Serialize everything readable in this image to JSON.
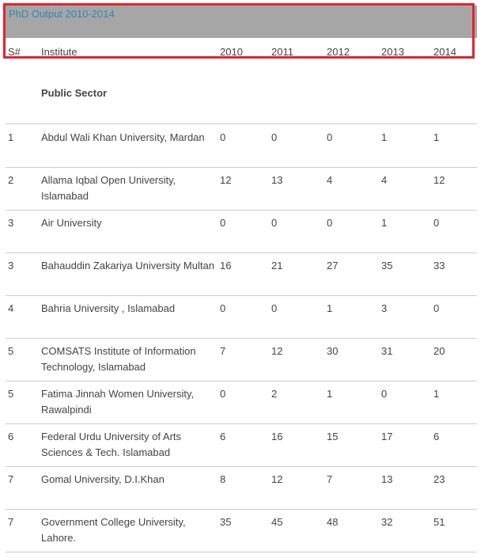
{
  "table": {
    "title": "PhD Output 2010-2014",
    "headers": {
      "num": "S#",
      "institute": "Institute",
      "years": [
        "2010",
        "2011",
        "2012",
        "2013",
        "2014"
      ]
    },
    "section": "Public Sector",
    "rows": [
      {
        "num": "1",
        "institute": "Abdul Wali Khan University, Mardan",
        "values": [
          "0",
          "0",
          "0",
          "1",
          "1"
        ]
      },
      {
        "num": "2",
        "institute": "Allama Iqbal Open University, Islamabad",
        "values": [
          "12",
          "13",
          "4",
          "4",
          "12"
        ]
      },
      {
        "num": "3",
        "institute": "Air University",
        "values": [
          "0",
          "0",
          "0",
          "1",
          "0"
        ]
      },
      {
        "num": "3",
        "institute": "Bahauddin Zakariya University Multan",
        "values": [
          "16",
          "21",
          "27",
          "35",
          "33"
        ]
      },
      {
        "num": "4",
        "institute": "Bahria University , Islamabad",
        "values": [
          "0",
          "0",
          "1",
          "3",
          "0"
        ]
      },
      {
        "num": "5",
        "institute": "COMSATS Institute of Information Technology, Islamabad",
        "values": [
          "7",
          "12",
          "30",
          "31",
          "20"
        ]
      },
      {
        "num": "5",
        "institute": "Fatima Jinnah Women University, Rawalpindi",
        "values": [
          "0",
          "2",
          "1",
          "0",
          "1"
        ]
      },
      {
        "num": "6",
        "institute": "Federal Urdu University of Arts Sciences & Tech. Islamabad",
        "values": [
          "6",
          "16",
          "15",
          "17",
          "6"
        ]
      },
      {
        "num": "7",
        "institute": "Gomal University, D.I.Khan",
        "values": [
          "8",
          "12",
          "7",
          "13",
          "23"
        ]
      },
      {
        "num": "7",
        "institute": "Government College University, Lahore.",
        "values": [
          "35",
          "45",
          "48",
          "32",
          "51"
        ]
      }
    ]
  },
  "colors": {
    "title_text": "#2a89b6",
    "title_band": "#a6a6a6",
    "highlight_border": "#e8222c",
    "row_border": "#cccccc"
  }
}
